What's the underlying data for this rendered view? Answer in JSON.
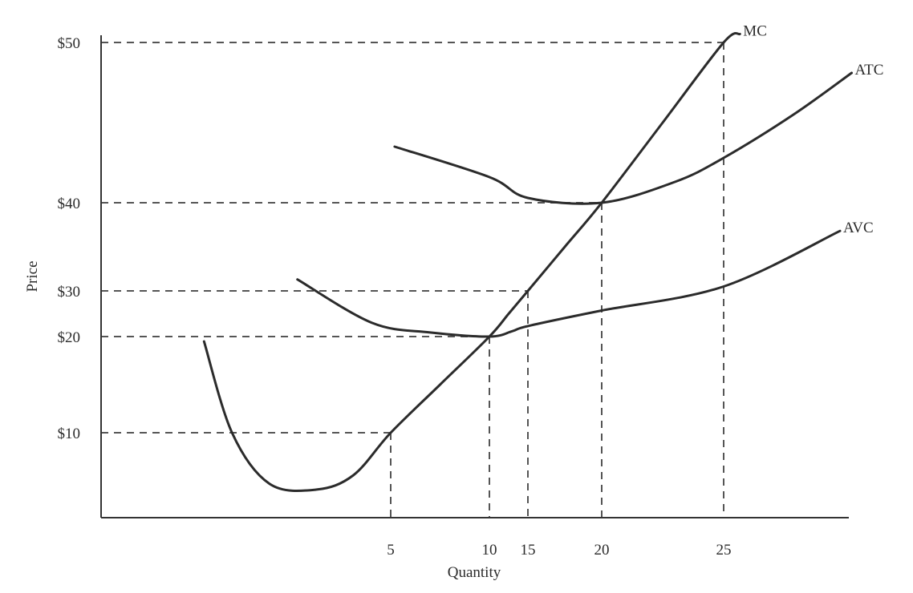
{
  "chart_data": {
    "type": "line",
    "xlabel": "Quantity",
    "ylabel": "Price",
    "x_ticks": [
      {
        "value": 5,
        "label": "5"
      },
      {
        "value": 10,
        "label": "10"
      },
      {
        "value": 15,
        "label": "15"
      },
      {
        "value": 20,
        "label": "20"
      },
      {
        "value": 25,
        "label": "25"
      }
    ],
    "y_ticks": [
      {
        "value": 10,
        "label": "$10"
      },
      {
        "value": 20,
        "label": "$20"
      },
      {
        "value": 30,
        "label": "$30"
      },
      {
        "value": 40,
        "label": "$40"
      },
      {
        "value": 50,
        "label": "$50"
      }
    ],
    "guides": [
      {
        "x": 5,
        "y": 10
      },
      {
        "x": 10,
        "y": 20
      },
      {
        "x": 15,
        "y": 30
      },
      {
        "x": 20,
        "y": 40
      },
      {
        "x": 25,
        "y": 50
      }
    ],
    "series": [
      {
        "name": "MC",
        "points": [
          [
            -5,
            19.5
          ],
          [
            -3.5,
            10
          ],
          [
            -1.5,
            4
          ],
          [
            1,
            3.3
          ],
          [
            3,
            5
          ],
          [
            5,
            10
          ],
          [
            7.5,
            15
          ],
          [
            10,
            20
          ],
          [
            12.5,
            25
          ],
          [
            15,
            30
          ],
          [
            17.5,
            35
          ],
          [
            20,
            40
          ],
          [
            22.5,
            45
          ],
          [
            25,
            50
          ],
          [
            25.7,
            52
          ]
        ]
      },
      {
        "name": "ATC",
        "points": [
          [
            5.2,
            43.5
          ],
          [
            10,
            41.6
          ],
          [
            15,
            40.3
          ],
          [
            20,
            40
          ],
          [
            23,
            41.3
          ],
          [
            25,
            42.8
          ],
          [
            28,
            45.5
          ],
          [
            30.5,
            48.1
          ]
        ]
      },
      {
        "name": "AVC",
        "points": [
          [
            0,
            31.3
          ],
          [
            4,
            23
          ],
          [
            7,
            20.9
          ],
          [
            10,
            20
          ],
          [
            13,
            21.2
          ],
          [
            15,
            22.3
          ],
          [
            20,
            25.7
          ],
          [
            25,
            30.5
          ],
          [
            30,
            36.8
          ]
        ]
      }
    ]
  }
}
